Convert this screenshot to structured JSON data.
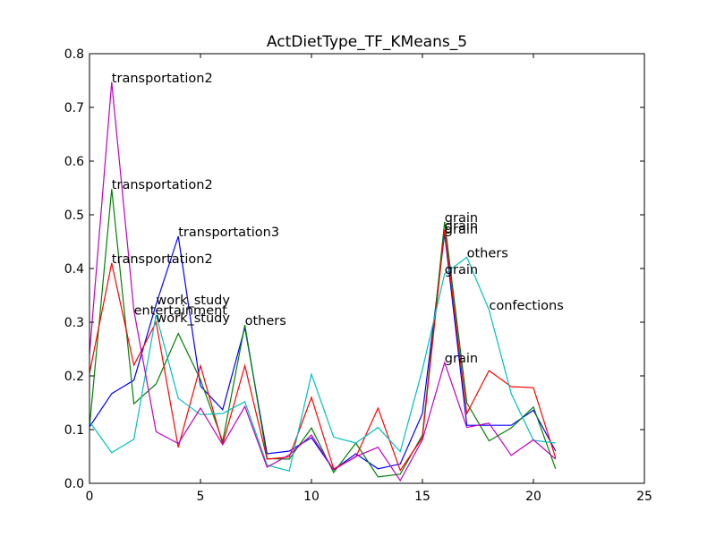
{
  "chart_data": {
    "type": "line",
    "title": "ActDietType_TF_KMeans_5",
    "xlabel": "",
    "ylabel": "",
    "xlim": [
      0,
      25
    ],
    "ylim": [
      0,
      0.8
    ],
    "x_ticks": [
      0,
      5,
      10,
      15,
      20,
      25
    ],
    "y_ticks": [
      0.0,
      0.1,
      0.2,
      0.3,
      0.4,
      0.5,
      0.6,
      0.7,
      0.8
    ],
    "x_tick_labels": [
      "0",
      "5",
      "10",
      "15",
      "20",
      "25"
    ],
    "y_tick_labels": [
      "0.0",
      "0.1",
      "0.2",
      "0.3",
      "0.4",
      "0.5",
      "0.6",
      "0.7",
      "0.8"
    ],
    "grid": false,
    "legend": "none",
    "x": [
      0,
      1,
      2,
      3,
      4,
      5,
      6,
      7,
      8,
      9,
      10,
      11,
      12,
      13,
      14,
      15,
      16,
      17,
      18,
      19,
      20,
      21
    ],
    "series": [
      {
        "color": "#0000ff",
        "values": [
          0.105,
          0.167,
          0.192,
          0.333,
          0.46,
          0.181,
          0.137,
          0.29,
          0.055,
          0.06,
          0.085,
          0.025,
          0.055,
          0.027,
          0.036,
          0.13,
          0.465,
          0.108,
          0.108,
          0.108,
          0.136,
          0.06
        ]
      },
      {
        "color": "#008000",
        "values": [
          0.105,
          0.548,
          0.148,
          0.185,
          0.279,
          0.193,
          0.078,
          0.295,
          0.046,
          0.045,
          0.103,
          0.02,
          0.075,
          0.012,
          0.017,
          0.09,
          0.487,
          0.15,
          0.079,
          0.103,
          0.142,
          0.027
        ]
      },
      {
        "color": "#ff0000",
        "values": [
          0.205,
          0.41,
          0.22,
          0.3,
          0.067,
          0.219,
          0.073,
          0.219,
          0.045,
          0.049,
          0.16,
          0.027,
          0.049,
          0.14,
          0.024,
          0.085,
          0.472,
          0.13,
          0.21,
          0.18,
          0.178,
          0.047
        ]
      },
      {
        "color": "#00bfbf",
        "values": [
          0.115,
          0.057,
          0.082,
          0.314,
          0.158,
          0.128,
          0.13,
          0.152,
          0.034,
          0.023,
          0.203,
          0.086,
          0.075,
          0.104,
          0.059,
          0.212,
          0.39,
          0.421,
          0.323,
          0.167,
          0.08,
          0.075
        ]
      },
      {
        "color": "#bf00bf",
        "values": [
          0.24,
          0.747,
          0.322,
          0.096,
          0.074,
          0.14,
          0.072,
          0.143,
          0.03,
          0.053,
          0.09,
          0.025,
          0.05,
          0.067,
          0.005,
          0.081,
          0.225,
          0.104,
          0.112,
          0.052,
          0.081,
          0.045
        ]
      }
    ],
    "annotations": [
      {
        "text": "transportation2",
        "x": 1,
        "y": 0.747
      },
      {
        "text": "transportation2",
        "x": 1,
        "y": 0.548
      },
      {
        "text": "transportation2",
        "x": 1,
        "y": 0.41
      },
      {
        "text": "transportation3",
        "x": 4,
        "y": 0.46
      },
      {
        "text": "work_study",
        "x": 3,
        "y": 0.333
      },
      {
        "text": "entertainment",
        "x": 2,
        "y": 0.314
      },
      {
        "text": "work_study",
        "x": 3,
        "y": 0.3
      },
      {
        "text": "others",
        "x": 7,
        "y": 0.295
      },
      {
        "text": "grain",
        "x": 16,
        "y": 0.487
      },
      {
        "text": "grain",
        "x": 16,
        "y": 0.472
      },
      {
        "text": "grain",
        "x": 16,
        "y": 0.465
      },
      {
        "text": "others",
        "x": 17,
        "y": 0.421
      },
      {
        "text": "grain",
        "x": 16,
        "y": 0.39
      },
      {
        "text": "confections",
        "x": 18,
        "y": 0.323
      },
      {
        "text": "grain",
        "x": 16,
        "y": 0.225
      }
    ]
  }
}
